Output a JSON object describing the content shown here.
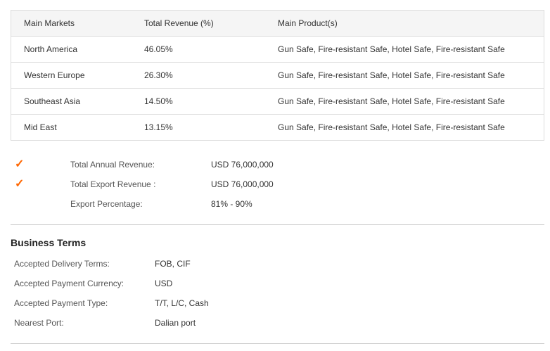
{
  "markets_table": {
    "headers": [
      "Main Markets",
      "Total Revenue (%)",
      "Main Product(s)"
    ],
    "rows": [
      {
        "market": "North America",
        "revenue": "46.05%",
        "products": "Gun Safe, Fire-resistant Safe, Hotel Safe, Fire-resistant Safe"
      },
      {
        "market": "Western Europe",
        "revenue": "26.30%",
        "products": "Gun Safe, Fire-resistant Safe, Hotel Safe, Fire-resistant Safe"
      },
      {
        "market": "Southeast Asia",
        "revenue": "14.50%",
        "products": "Gun Safe, Fire-resistant Safe, Hotel Safe, Fire-resistant Safe"
      },
      {
        "market": "Mid East",
        "revenue": "13.15%",
        "products": "Gun Safe, Fire-resistant Safe, Hotel Safe, Fire-resistant Safe"
      }
    ]
  },
  "summary": {
    "check_color": "#ff6600",
    "items": [
      {
        "label": "Total Annual Revenue:",
        "value": "USD 76,000,000",
        "checked": true
      },
      {
        "label": "Total Export Revenue :",
        "value": "USD 76,000,000",
        "checked": true
      },
      {
        "label": "Export Percentage:",
        "value": "81% - 90%",
        "checked": false
      }
    ]
  },
  "business_terms": {
    "title": "Business Terms",
    "items": [
      {
        "label": "Accepted Delivery Terms:",
        "value": "FOB, CIF"
      },
      {
        "label": "Accepted Payment Currency:",
        "value": "USD"
      },
      {
        "label": "Accepted Payment Type:",
        "value": "T/T, L/C, Cash"
      },
      {
        "label": "Nearest Port:",
        "value": "Dalian port"
      }
    ]
  }
}
